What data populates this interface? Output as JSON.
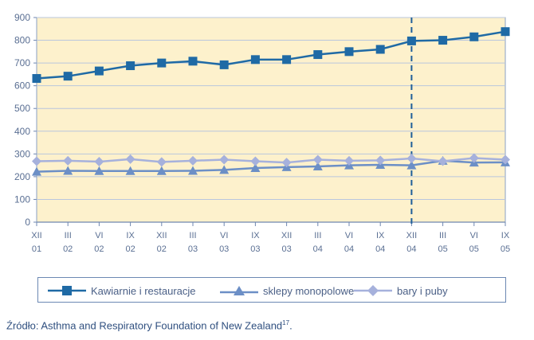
{
  "chart_data": {
    "type": "line",
    "categories": [
      [
        "XII",
        "01"
      ],
      [
        "III",
        "02"
      ],
      [
        "VI",
        "02"
      ],
      [
        "IX",
        "02"
      ],
      [
        "XII",
        "02"
      ],
      [
        "III",
        "03"
      ],
      [
        "VI",
        "03"
      ],
      [
        "IX",
        "03"
      ],
      [
        "XII",
        "03"
      ],
      [
        "III",
        "04"
      ],
      [
        "VI",
        "04"
      ],
      [
        "IX",
        "04"
      ],
      [
        "XII",
        "04"
      ],
      [
        "III",
        "05"
      ],
      [
        "VI",
        "05"
      ],
      [
        "IX",
        "05"
      ]
    ],
    "ylim": [
      0,
      900
    ],
    "yticks": [
      0,
      100,
      200,
      300,
      400,
      500,
      600,
      700,
      800,
      900
    ],
    "grid": true,
    "background": "#fdf1cc",
    "marker_line_after_category": 12,
    "series": [
      {
        "name": "Kawiarnie i restauracje",
        "color": "#1f6aa5",
        "marker": "square",
        "values": [
          632,
          642,
          665,
          688,
          700,
          708,
          692,
          715,
          715,
          737,
          750,
          760,
          797,
          800,
          815,
          838
        ]
      },
      {
        "name": "sklepy monopolowe",
        "color": "#6c8fc6",
        "marker": "triangle",
        "values": [
          222,
          226,
          225,
          225,
          225,
          226,
          230,
          238,
          242,
          245,
          250,
          252,
          250,
          270,
          262,
          263
        ]
      },
      {
        "name": "bary i puby",
        "color": "#a6b1dc",
        "marker": "diamond",
        "values": [
          268,
          270,
          266,
          277,
          265,
          270,
          275,
          268,
          262,
          275,
          270,
          272,
          280,
          268,
          282,
          275
        ]
      }
    ]
  },
  "source": {
    "label": "Źródło",
    "text": "Asthma and Respiratory Foundation of New Zealand",
    "footnote": "17",
    "end": "."
  }
}
